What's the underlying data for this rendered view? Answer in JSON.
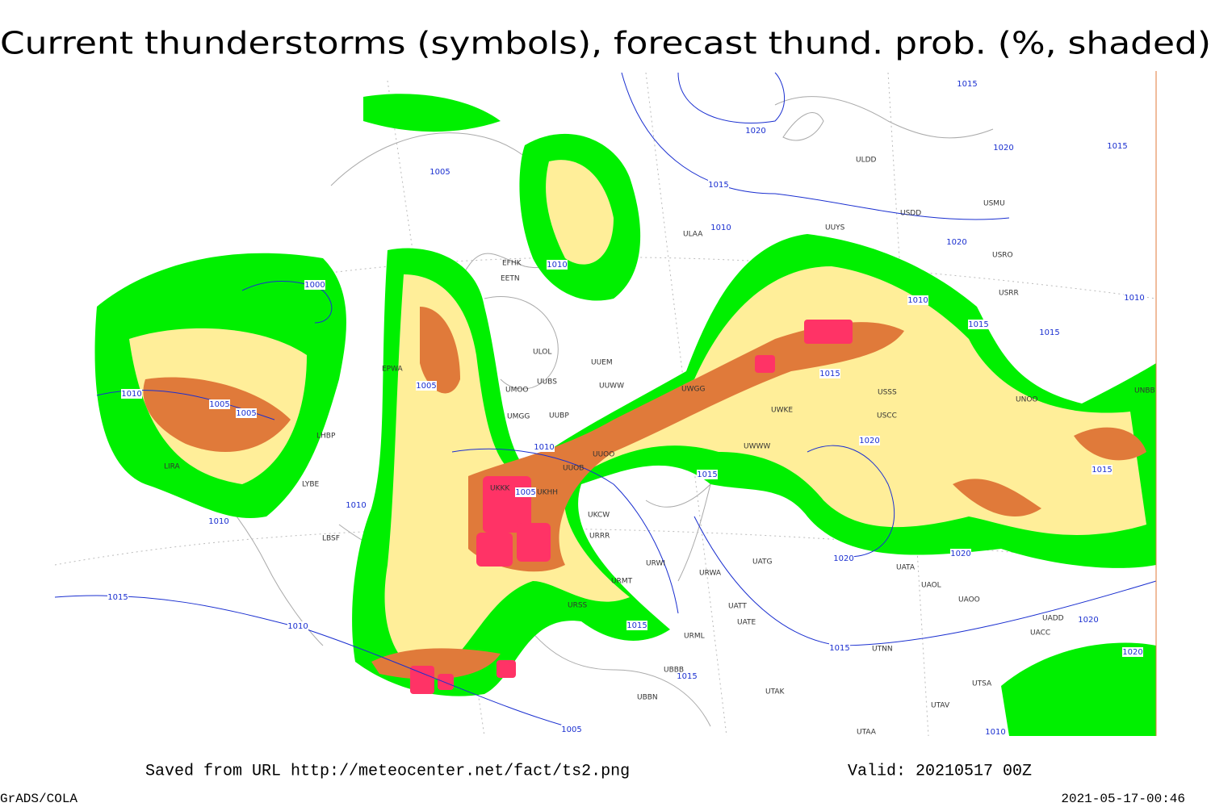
{
  "header": {
    "title": "Current thunderstorms (symbols), forecast thund. prob. (%, shaded)"
  },
  "footer": {
    "source": "Saved from URL http://meteocenter.net/fact/ts2.png",
    "valid": "Valid: 20210517 00Z",
    "software": "GrADS/COLA",
    "timestamp": "2021-05-17-00:46"
  },
  "isobar_labels": [
    "1020",
    "1015",
    "1005",
    "1015",
    "1010",
    "1010",
    "1000",
    "1005",
    "1005",
    "1010",
    "1005",
    "1010",
    "1010",
    "1015",
    "1010",
    "1015",
    "1010",
    "1015",
    "1020",
    "1015",
    "1020",
    "1020",
    "1015",
    "1005",
    "1010",
    "1015",
    "1010",
    "1015",
    "1020",
    "1020",
    "1015",
    "1015",
    "1020",
    "1020",
    "1010",
    "1005",
    "1015"
  ],
  "stations": [
    "ULDD",
    "USDD",
    "USMU",
    "UUYS",
    "ULAA",
    "EFHK",
    "EETN",
    "ULOL",
    "UUEM",
    "UUWW",
    "UUBS",
    "UUBP",
    "UMOO",
    "UMGG",
    "UUOO",
    "UUOB",
    "UKKK",
    "UKHH",
    "UKCW",
    "URRR",
    "URWI",
    "URMT",
    "URSS",
    "URML",
    "UATG",
    "URWA",
    "UATT",
    "UATE",
    "UTAK",
    "UTNN",
    "UAOL",
    "UAOO",
    "UATA",
    "UNOO",
    "USCC",
    "UWWW",
    "UWGG",
    "UWKE",
    "USSS",
    "LHBP",
    "LIRA",
    "LYBE",
    "LBSF",
    "EPWA",
    "UBBB",
    "UBBN",
    "UTAA",
    "UTSA",
    "UTAV",
    "UACC",
    "UADD",
    "UNBB",
    "USRO",
    "USRR"
  ]
}
